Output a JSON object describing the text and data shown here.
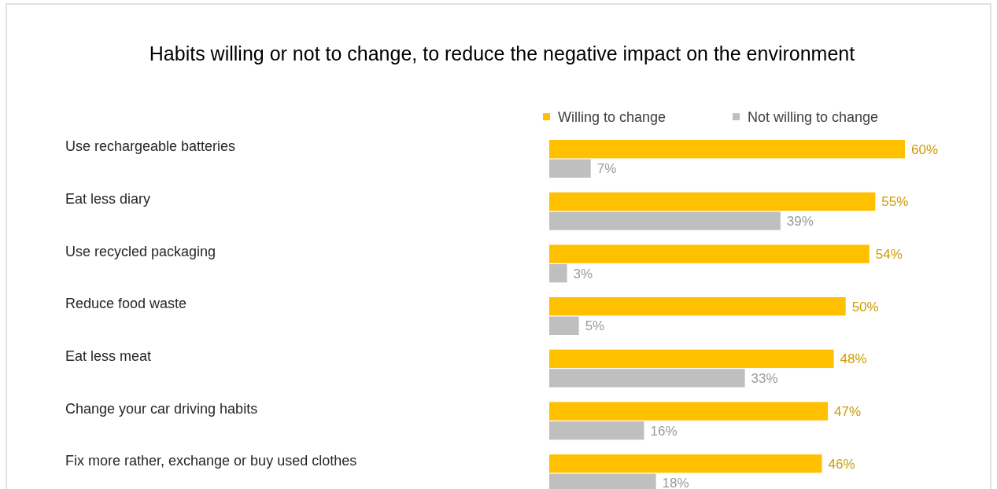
{
  "chart_data": {
    "type": "bar",
    "orientation": "horizontal",
    "title": "Habits willing or not to change, to reduce the negative impact on the environment",
    "categories": [
      "Use rechargeable batteries",
      "Eat less diary",
      "Use recycled packaging",
      "Reduce food waste",
      "Eat less meat",
      "Change your car driving habits",
      "Fix more rather, exchange or buy used clothes"
    ],
    "series": [
      {
        "name": "Willing to change",
        "color": "#ffc000",
        "values": [
          60,
          55,
          54,
          50,
          48,
          47,
          46
        ],
        "value_labels": [
          "60%",
          "55%",
          "54%",
          "50%",
          "48%",
          "47%",
          "46%"
        ]
      },
      {
        "name": "Not willing to change",
        "color": "#bfbfbf",
        "values": [
          7,
          39,
          3,
          5,
          33,
          16,
          18
        ],
        "value_labels": [
          "7%",
          "39%",
          "3%",
          "5%",
          "33%",
          "16%",
          "18%"
        ]
      }
    ],
    "legend": "top right",
    "grid": false
  }
}
